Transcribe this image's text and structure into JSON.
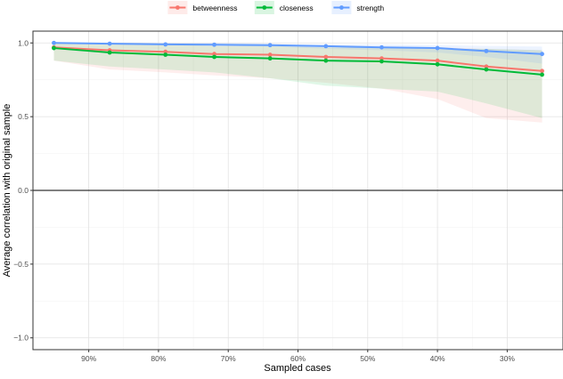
{
  "chart_data": {
    "type": "line",
    "title": "",
    "xlabel": "Sampled cases",
    "ylabel": "Average correlation with original sample",
    "x_reversed": true,
    "x_ticks": [
      {
        "value": 0.9,
        "label": "90%"
      },
      {
        "value": 0.8,
        "label": "80%"
      },
      {
        "value": 0.7,
        "label": "70%"
      },
      {
        "value": 0.6,
        "label": "60%"
      },
      {
        "value": 0.5,
        "label": "50%"
      },
      {
        "value": 0.4,
        "label": "40%"
      },
      {
        "value": 0.3,
        "label": "30%"
      }
    ],
    "y_ticks": [
      {
        "value": 1.0,
        "label": "1.0"
      },
      {
        "value": 0.5,
        "label": "0.5"
      },
      {
        "value": 0.0,
        "label": "0.0"
      },
      {
        "value": -0.5,
        "label": "−0.5"
      },
      {
        "value": -1.0,
        "label": "−1.0"
      }
    ],
    "xlim": [
      0.98,
      0.22
    ],
    "ylim": [
      -1.08,
      1.08
    ],
    "grid": true,
    "legend_position": "top",
    "x": [
      0.95,
      0.87,
      0.79,
      0.72,
      0.64,
      0.56,
      0.48,
      0.4,
      0.33,
      0.25
    ],
    "series": [
      {
        "name": "betweenness",
        "color": "#F8766D",
        "values": [
          0.97,
          0.95,
          0.94,
          0.925,
          0.92,
          0.905,
          0.895,
          0.88,
          0.84,
          0.81
        ],
        "lower": [
          0.88,
          0.82,
          0.8,
          0.78,
          0.76,
          0.73,
          0.69,
          0.62,
          0.49,
          0.46
        ],
        "upper": [
          1.0,
          0.99,
          0.99,
          0.98,
          0.98,
          0.97,
          0.97,
          0.97,
          0.96,
          0.95
        ]
      },
      {
        "name": "closeness",
        "color": "#00BA38",
        "values": [
          0.965,
          0.935,
          0.92,
          0.905,
          0.895,
          0.88,
          0.875,
          0.855,
          0.82,
          0.785
        ],
        "lower": [
          0.88,
          0.84,
          0.82,
          0.8,
          0.76,
          0.71,
          0.69,
          0.67,
          0.59,
          0.49
        ],
        "upper": [
          1.0,
          0.99,
          0.99,
          0.98,
          0.98,
          0.97,
          0.97,
          0.96,
          0.96,
          0.95
        ]
      },
      {
        "name": "strength",
        "color": "#619CFF",
        "values": [
          1.0,
          0.995,
          0.99,
          0.988,
          0.985,
          0.978,
          0.97,
          0.965,
          0.945,
          0.925
        ],
        "lower": [
          1.0,
          0.99,
          0.985,
          0.98,
          0.975,
          0.96,
          0.95,
          0.935,
          0.905,
          0.86
        ],
        "upper": [
          1.0,
          1.0,
          1.0,
          1.0,
          0.995,
          0.99,
          0.99,
          0.985,
          0.98,
          0.975
        ]
      }
    ]
  }
}
